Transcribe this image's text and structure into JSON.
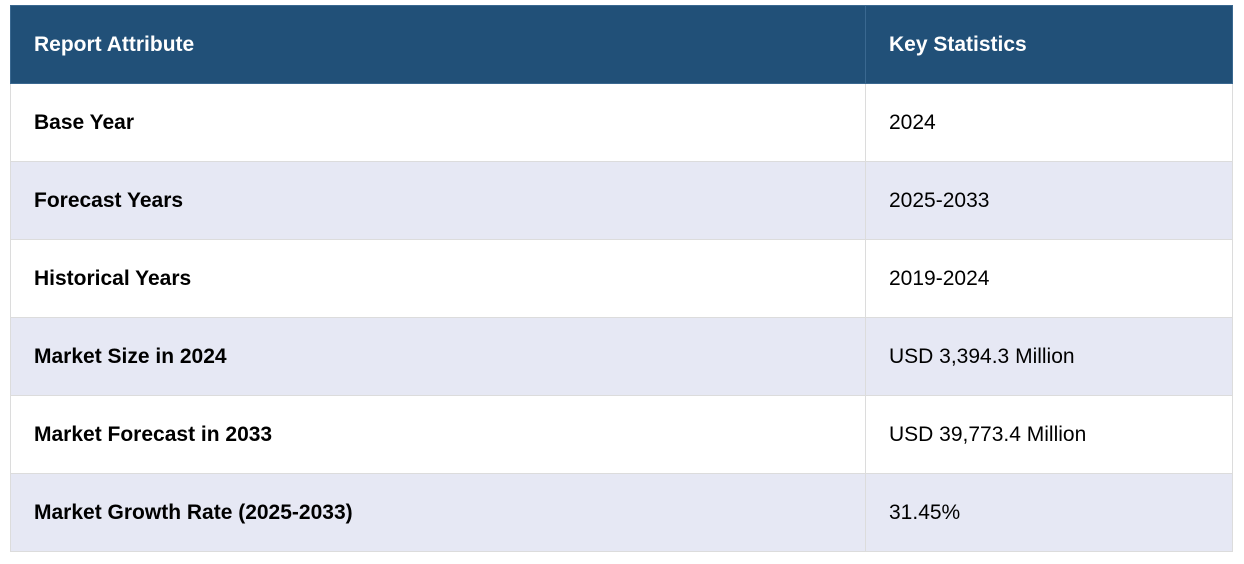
{
  "table": {
    "headers": [
      "Report Attribute",
      "Key Statistics"
    ],
    "rows": [
      [
        "Base Year",
        "2024"
      ],
      [
        "Forecast Years",
        "2025-2033"
      ],
      [
        "Historical Years",
        "2019-2024"
      ],
      [
        "Market Size in 2024",
        "USD 3,394.3 Million"
      ],
      [
        "Market Forecast in 2033",
        "USD 39,773.4 Million"
      ],
      [
        "Market Growth Rate (2025-2033)",
        "31.45%"
      ]
    ]
  },
  "colors": {
    "header_bg": "#215078",
    "header_text": "#ffffff",
    "row_alt_bg": "#e6e8f4",
    "row_bg": "#ffffff"
  }
}
